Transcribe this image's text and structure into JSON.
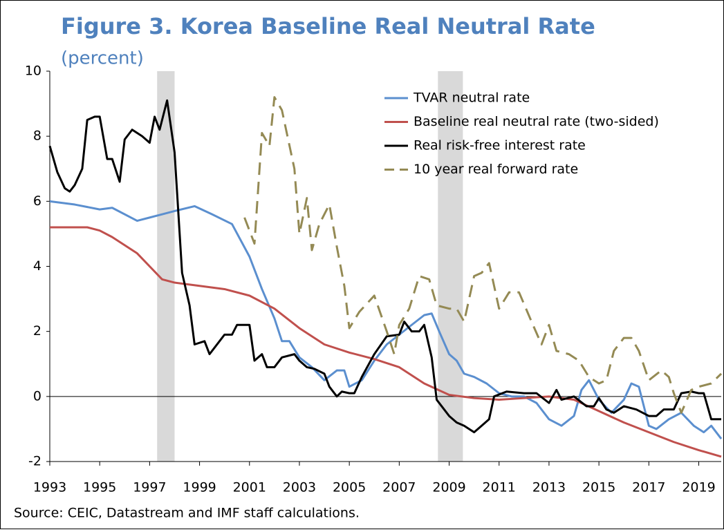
{
  "chart_data": {
    "type": "line",
    "title": "Figure 3. Korea Baseline Real Neutral Rate",
    "subtitle": "(percent)",
    "source": "Source: CEIC, Datastream and IMF staff calculations.",
    "xlim": [
      1993,
      2019.9
    ],
    "xticks": [
      1993,
      1995,
      1997,
      1999,
      2001,
      2003,
      2005,
      2007,
      2009,
      2011,
      2013,
      2015,
      2017,
      2019
    ],
    "ylim": [
      -2,
      10
    ],
    "yticks": [
      -2,
      0,
      2,
      4,
      6,
      8,
      10
    ],
    "shaded": [
      [
        1997.3,
        1998.0
      ],
      [
        2008.55,
        2009.55
      ]
    ],
    "shade_color": "#d9d9d9",
    "legend": "top-right",
    "series": [
      {
        "name": "TVAR neutral rate",
        "color": "#5b8fcf",
        "dash": false,
        "x": [
          1993,
          1994,
          1995,
          1995.5,
          1996.5,
          1997,
          1997.5,
          1998,
          1998.8,
          1999.5,
          2000.3,
          2001,
          2001.5,
          2002,
          2002.3,
          2002.6,
          2003,
          2003.5,
          2004,
          2004.5,
          2004.8,
          2005,
          2005.5,
          2006,
          2006.5,
          2007,
          2007.5,
          2008,
          2008.3,
          2008.6,
          2009,
          2009.3,
          2009.6,
          2010,
          2010.5,
          2011,
          2011.5,
          2012,
          2012.5,
          2013,
          2013.5,
          2014,
          2014.3,
          2014.6,
          2015,
          2015.5,
          2016,
          2016.3,
          2016.6,
          2017,
          2017.3,
          2017.8,
          2018.3,
          2018.8,
          2019.2,
          2019.5,
          2019.9
        ],
        "values": [
          6.0,
          5.9,
          5.75,
          5.8,
          5.4,
          5.5,
          5.6,
          5.7,
          5.85,
          5.6,
          5.3,
          4.3,
          3.3,
          2.4,
          1.7,
          1.7,
          1.2,
          0.9,
          0.5,
          0.8,
          0.8,
          0.3,
          0.5,
          1.1,
          1.6,
          1.9,
          2.2,
          2.5,
          2.55,
          2.0,
          1.3,
          1.1,
          0.7,
          0.6,
          0.4,
          0.1,
          0.0,
          0.0,
          -0.2,
          -0.7,
          -0.9,
          -0.6,
          0.2,
          0.5,
          -0.1,
          -0.5,
          -0.1,
          0.4,
          0.3,
          -0.9,
          -1.0,
          -0.7,
          -0.5,
          -0.9,
          -1.1,
          -0.9,
          -1.3
        ]
      },
      {
        "name": "Baseline real neutral rate (two-sided)",
        "color": "#c0504d",
        "dash": false,
        "x": [
          1993,
          1994.5,
          1995,
          1995.5,
          1996.5,
          1997,
          1997.5,
          1998,
          1999,
          2000,
          2001,
          2002,
          2003,
          2004,
          2005,
          2006,
          2007,
          2008,
          2009,
          2010,
          2011,
          2012,
          2013,
          2014,
          2015,
          2016,
          2017,
          2018,
          2019,
          2019.9
        ],
        "values": [
          5.2,
          5.2,
          5.1,
          4.9,
          4.4,
          4.0,
          3.6,
          3.5,
          3.4,
          3.3,
          3.1,
          2.7,
          2.1,
          1.6,
          1.35,
          1.15,
          0.9,
          0.4,
          0.05,
          -0.05,
          -0.1,
          -0.05,
          0.0,
          -0.1,
          -0.45,
          -0.8,
          -1.1,
          -1.4,
          -1.65,
          -1.85
        ]
      },
      {
        "name": "Real risk-free interest rate",
        "color": "#000000",
        "dash": false,
        "x": [
          1993,
          1993.3,
          1993.6,
          1993.8,
          1994,
          1994.3,
          1994.5,
          1994.8,
          1995,
          1995.3,
          1995.5,
          1995.8,
          1996,
          1996.3,
          1996.7,
          1997,
          1997.2,
          1997.4,
          1997.7,
          1998,
          1998.3,
          1998.6,
          1998.8,
          1999.2,
          1999.4,
          1999.8,
          2000,
          2000.3,
          2000.5,
          2000.8,
          2001,
          2001.2,
          2001.5,
          2001.7,
          2002,
          2002.3,
          2002.8,
          2003,
          2003.3,
          2003.6,
          2004,
          2004.2,
          2004.5,
          2004.7,
          2005,
          2005.2,
          2005.5,
          2006,
          2006.5,
          2007,
          2007.2,
          2007.5,
          2007.8,
          2008,
          2008.3,
          2008.5,
          2009,
          2009.3,
          2009.6,
          2010,
          2010.3,
          2010.6,
          2010.8,
          2011.3,
          2012,
          2012.5,
          2013,
          2013.3,
          2013.5,
          2014,
          2014.5,
          2014.8,
          2015,
          2015.3,
          2015.6,
          2016,
          2016.5,
          2017,
          2017.3,
          2017.6,
          2018,
          2018.3,
          2018.7,
          2019,
          2019.2,
          2019.5,
          2019.9
        ],
        "values": [
          7.7,
          6.9,
          6.4,
          6.3,
          6.5,
          7.0,
          8.5,
          8.6,
          8.6,
          7.3,
          7.3,
          6.6,
          7.9,
          8.2,
          8.0,
          7.8,
          8.6,
          8.2,
          9.1,
          7.5,
          3.8,
          2.8,
          1.6,
          1.7,
          1.3,
          1.7,
          1.9,
          1.9,
          2.2,
          2.2,
          2.2,
          1.1,
          1.3,
          0.9,
          0.9,
          1.2,
          1.3,
          1.1,
          0.9,
          0.85,
          0.7,
          0.3,
          0.0,
          0.15,
          0.1,
          0.1,
          0.6,
          1.3,
          1.85,
          1.9,
          2.3,
          2.0,
          2.0,
          2.2,
          1.2,
          -0.1,
          -0.6,
          -0.8,
          -0.9,
          -1.1,
          -0.9,
          -0.7,
          0.0,
          0.15,
          0.1,
          0.1,
          -0.2,
          0.2,
          -0.1,
          0.0,
          -0.3,
          -0.3,
          -0.05,
          -0.4,
          -0.5,
          -0.3,
          -0.4,
          -0.6,
          -0.6,
          -0.4,
          -0.4,
          0.1,
          0.15,
          0.1,
          0.1,
          -0.7,
          -0.7
        ]
      },
      {
        "name": "10 year real forward rate",
        "color": "#948a54",
        "dash": true,
        "x": [
          2000.8,
          2001.2,
          2001.5,
          2001.8,
          2002,
          2002.3,
          2002.8,
          2003,
          2003.3,
          2003.5,
          2003.8,
          2004.2,
          2004.5,
          2004.8,
          2005,
          2005.4,
          2006,
          2006.5,
          2006.8,
          2007,
          2007.4,
          2007.8,
          2008.2,
          2008.5,
          2009,
          2009.3,
          2009.6,
          2010,
          2010.3,
          2010.6,
          2011,
          2011.4,
          2011.8,
          2012.3,
          2012.7,
          2013,
          2013.3,
          2013.8,
          2014.2,
          2014.6,
          2015,
          2015.3,
          2015.6,
          2016,
          2016.3,
          2016.6,
          2017,
          2017.5,
          2017.8,
          2018,
          2018.3,
          2018.7,
          2019,
          2019.5,
          2019.9
        ],
        "values": [
          5.5,
          4.7,
          8.1,
          7.7,
          9.2,
          8.8,
          7.0,
          5.0,
          6.1,
          4.5,
          5.3,
          5.9,
          4.6,
          3.4,
          2.1,
          2.6,
          3.1,
          2.0,
          1.3,
          2.2,
          2.7,
          3.7,
          3.6,
          2.8,
          2.7,
          2.7,
          2.3,
          3.7,
          3.8,
          4.1,
          2.7,
          3.2,
          3.2,
          2.3,
          1.6,
          2.2,
          1.4,
          1.3,
          1.1,
          0.6,
          0.4,
          0.5,
          1.4,
          1.8,
          1.8,
          1.4,
          0.5,
          0.8,
          0.6,
          0.1,
          -0.5,
          0.2,
          0.3,
          0.4,
          0.7
        ]
      }
    ]
  }
}
